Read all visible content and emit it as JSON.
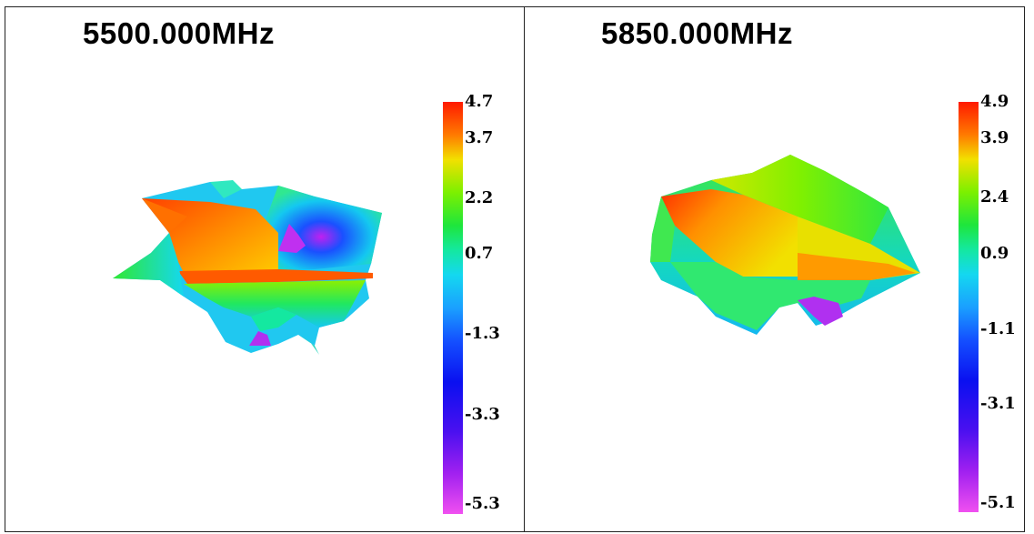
{
  "panels": [
    {
      "title": "5500.000MHz",
      "scale_ticks": [
        "4.7",
        "3.7",
        "2.2",
        "0.7",
        "-1.3",
        "-3.3",
        "-5.3"
      ],
      "scale_range": [
        -5.3,
        4.7
      ]
    },
    {
      "title": "5850.000MHz",
      "scale_ticks": [
        "4.9",
        "3.9",
        "2.4",
        "0.9",
        "-1.1",
        "-3.1",
        "-5.1"
      ],
      "scale_range": [
        -5.1,
        4.9
      ]
    }
  ],
  "colors": {
    "max": "#ff1a00",
    "high": "#f2e000",
    "mid_high": "#1ee63c",
    "mid": "#14d8f0",
    "low": "#0a10f0",
    "min": "#f050f0"
  }
}
